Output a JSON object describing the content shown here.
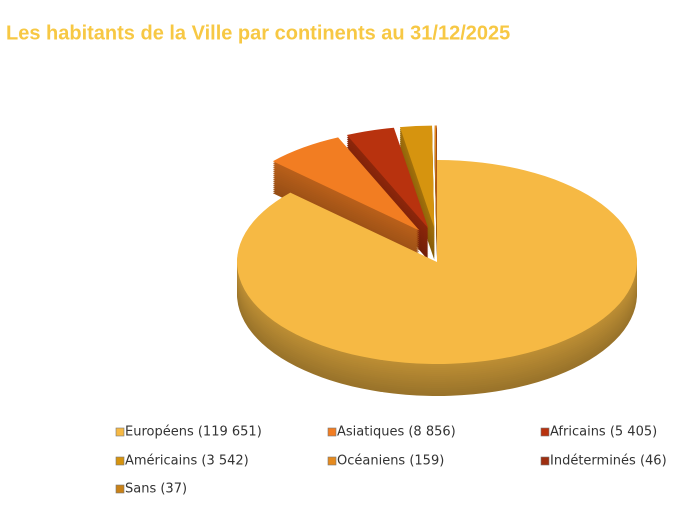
{
  "chart_data": {
    "type": "pie3d",
    "title": "Les habitants de la Ville par continents au 31/12/2025",
    "categories": [
      "Européens (119 651)",
      "Asiatiques (8 856)",
      "Africains (5 405)",
      "Américains (3 542)",
      "Océaniens (159)",
      "Indéterminés (46)",
      "Sans (37)"
    ],
    "values": [
      119651,
      8856,
      5405,
      3542,
      159,
      46,
      37
    ],
    "colors": [
      "#f6b944",
      "#f27d22",
      "#b8320e",
      "#d6940f",
      "#e58a1e",
      "#9e2e10",
      "#c98218"
    ],
    "legend": "bottom"
  }
}
